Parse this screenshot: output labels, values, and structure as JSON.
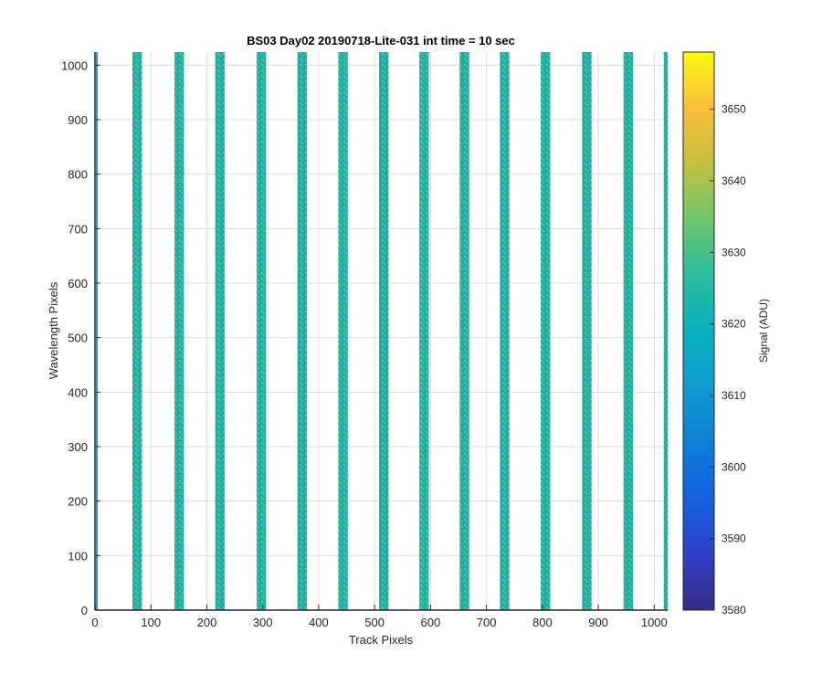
{
  "chart_data": {
    "type": "heatmap",
    "title": "BS03 Day02 20190718-Lite-031 int time = 10 sec",
    "xlabel": "Track Pixels",
    "ylabel": "Wavelength Pixels",
    "xlim": [
      0,
      1024
    ],
    "ylim": [
      0,
      1024
    ],
    "xticks": [
      0,
      100,
      200,
      300,
      400,
      500,
      600,
      700,
      800,
      900,
      1000
    ],
    "yticks": [
      0,
      100,
      200,
      300,
      400,
      500,
      600,
      700,
      800,
      900,
      1000
    ],
    "grid": true,
    "colorbar": {
      "label": "Signal (ADU)",
      "range": [
        3580,
        3658
      ],
      "ticks": [
        3580,
        3590,
        3600,
        3610,
        3620,
        3630,
        3640,
        3650
      ],
      "colormap": "parula"
    },
    "tracks": [
      {
        "x_start": 67,
        "x_end": 84,
        "mean_signal": 3622
      },
      {
        "x_start": 142,
        "x_end": 159,
        "mean_signal": 3622
      },
      {
        "x_start": 215,
        "x_end": 232,
        "mean_signal": 3622
      },
      {
        "x_start": 289,
        "x_end": 306,
        "mean_signal": 3622
      },
      {
        "x_start": 362,
        "x_end": 379,
        "mean_signal": 3622
      },
      {
        "x_start": 435,
        "x_end": 452,
        "mean_signal": 3622
      },
      {
        "x_start": 508,
        "x_end": 525,
        "mean_signal": 3622
      },
      {
        "x_start": 580,
        "x_end": 597,
        "mean_signal": 3622
      },
      {
        "x_start": 652,
        "x_end": 669,
        "mean_signal": 3622
      },
      {
        "x_start": 724,
        "x_end": 741,
        "mean_signal": 3622
      },
      {
        "x_start": 797,
        "x_end": 814,
        "mean_signal": 3622
      },
      {
        "x_start": 871,
        "x_end": 888,
        "mean_signal": 3622
      },
      {
        "x_start": 945,
        "x_end": 962,
        "mean_signal": 3622
      },
      {
        "x_start": 1017,
        "x_end": 1024,
        "mean_signal": 3622
      }
    ]
  }
}
